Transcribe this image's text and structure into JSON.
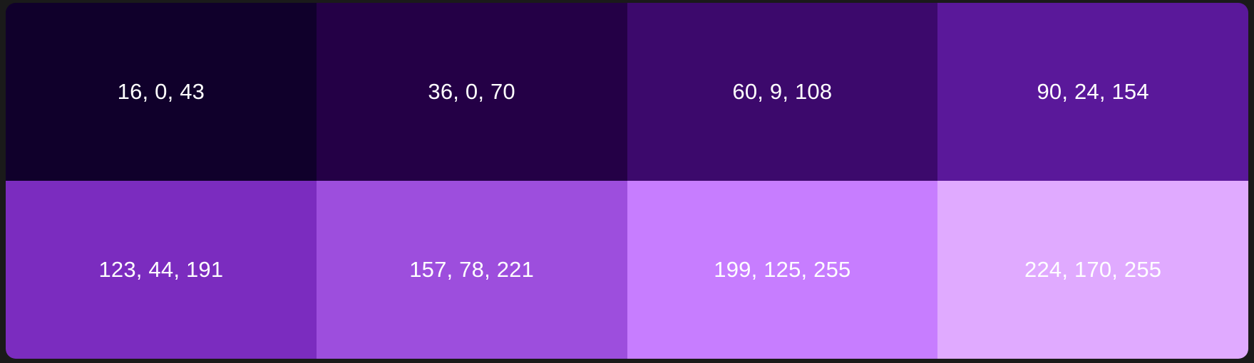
{
  "palette": {
    "swatches": [
      {
        "label": "16, 0, 43",
        "color": "#10002b"
      },
      {
        "label": "36, 0, 70",
        "color": "#240046"
      },
      {
        "label": "60, 9, 108",
        "color": "#3c096c"
      },
      {
        "label": "90, 24, 154",
        "color": "#5a189a"
      },
      {
        "label": "123, 44, 191",
        "color": "#7b2cbf"
      },
      {
        "label": "157, 78, 221",
        "color": "#9d4edd"
      },
      {
        "label": "199, 125, 255",
        "color": "#c77dff"
      },
      {
        "label": "224, 170, 255",
        "color": "#e0aaff"
      }
    ]
  }
}
